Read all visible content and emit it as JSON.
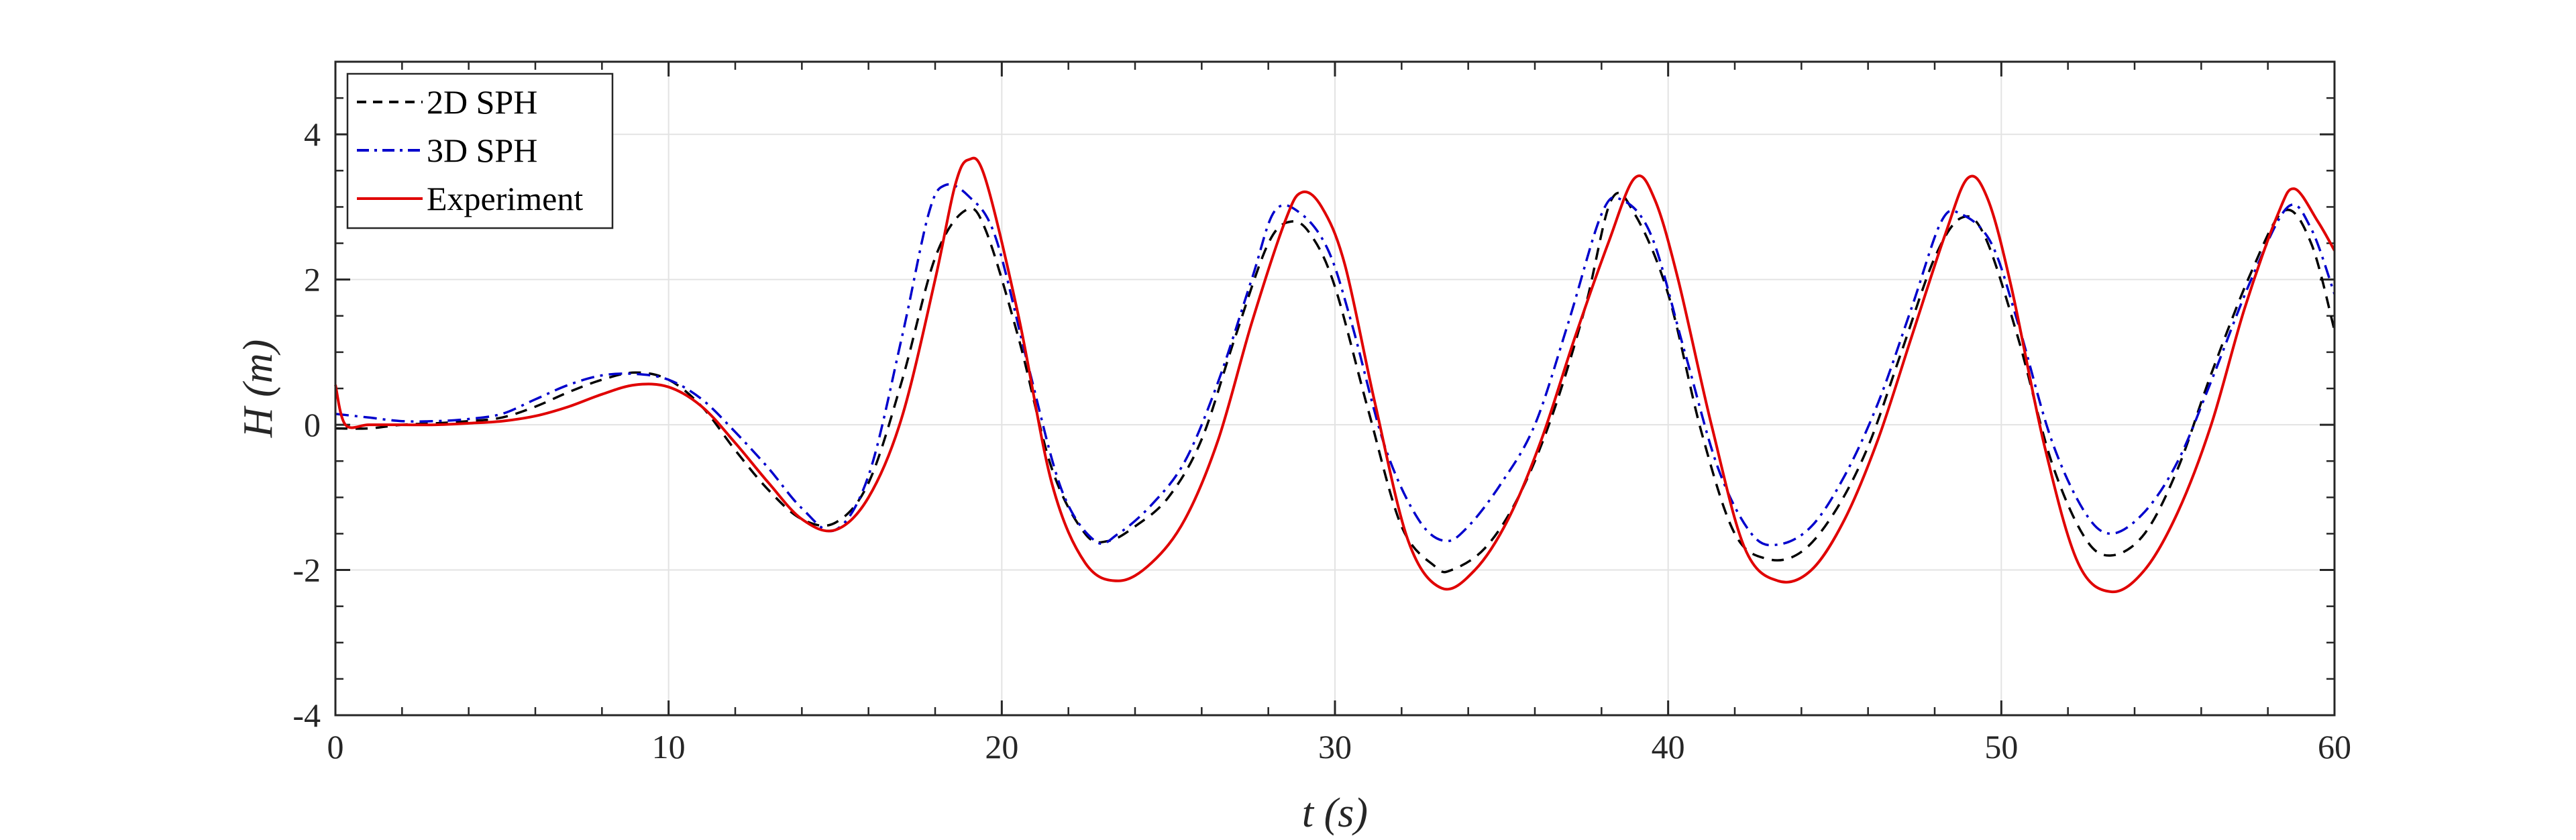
{
  "chart_data": {
    "type": "line",
    "title": "",
    "xlabel": "t (s)",
    "ylabel": "H (m)",
    "xlim": [
      0,
      60
    ],
    "ylim": [
      -4,
      5
    ],
    "xticks": [
      0,
      10,
      20,
      30,
      40,
      50,
      60
    ],
    "yticks": [
      -4,
      -2,
      0,
      2,
      4
    ],
    "xtick_labels": [
      "0",
      "10",
      "20",
      "30",
      "40",
      "50",
      "60"
    ],
    "ytick_labels": [
      "-4",
      "-2",
      "0",
      "2",
      "4"
    ],
    "grid": true,
    "legend_position": "top-left",
    "series": [
      {
        "name": "2D SPH",
        "color": "#000000",
        "style": "dashed",
        "points": [
          [
            0,
            -0.05
          ],
          [
            1,
            -0.05
          ],
          [
            2,
            0.0
          ],
          [
            3,
            0.02
          ],
          [
            4,
            0.05
          ],
          [
            5,
            0.1
          ],
          [
            6,
            0.25
          ],
          [
            7,
            0.45
          ],
          [
            8,
            0.62
          ],
          [
            9,
            0.72
          ],
          [
            10,
            0.62
          ],
          [
            11,
            0.25
          ],
          [
            12,
            -0.35
          ],
          [
            13,
            -0.9
          ],
          [
            14,
            -1.3
          ],
          [
            15,
            -1.35
          ],
          [
            16,
            -0.8
          ],
          [
            17,
            0.6
          ],
          [
            18,
            2.3
          ],
          [
            18.9,
            2.95
          ],
          [
            19.5,
            2.7
          ],
          [
            20.5,
            1.2
          ],
          [
            21.5,
            -0.6
          ],
          [
            22.5,
            -1.5
          ],
          [
            23.2,
            -1.6
          ],
          [
            24,
            -1.4
          ],
          [
            25,
            -1.0
          ],
          [
            26,
            -0.2
          ],
          [
            27,
            1.2
          ],
          [
            28,
            2.5
          ],
          [
            28.7,
            2.8
          ],
          [
            29.3,
            2.6
          ],
          [
            30,
            1.9
          ],
          [
            31,
            0.2
          ],
          [
            32,
            -1.4
          ],
          [
            33,
            -1.95
          ],
          [
            33.5,
            -2.0
          ],
          [
            34.5,
            -1.7
          ],
          [
            35.5,
            -1.0
          ],
          [
            36.5,
            0.1
          ],
          [
            37.5,
            1.6
          ],
          [
            38.3,
            3.1
          ],
          [
            39,
            2.9
          ],
          [
            40,
            1.8
          ],
          [
            41,
            -0.1
          ],
          [
            42,
            -1.5
          ],
          [
            43,
            -1.85
          ],
          [
            44,
            -1.75
          ],
          [
            45,
            -1.2
          ],
          [
            46,
            -0.3
          ],
          [
            47,
            1.0
          ],
          [
            48,
            2.3
          ],
          [
            48.8,
            2.85
          ],
          [
            49.5,
            2.6
          ],
          [
            50.5,
            1.2
          ],
          [
            51.5,
            -0.5
          ],
          [
            52.5,
            -1.55
          ],
          [
            53.3,
            -1.8
          ],
          [
            54.3,
            -1.5
          ],
          [
            55.3,
            -0.6
          ],
          [
            56.3,
            0.7
          ],
          [
            57.5,
            2.1
          ],
          [
            58.5,
            2.95
          ],
          [
            59.3,
            2.5
          ],
          [
            60,
            1.3
          ]
        ]
      },
      {
        "name": "3D SPH",
        "color": "#0000CC",
        "style": "dashdot",
        "points": [
          [
            0,
            0.15
          ],
          [
            1,
            0.1
          ],
          [
            2,
            0.05
          ],
          [
            3,
            0.05
          ],
          [
            4,
            0.08
          ],
          [
            5,
            0.15
          ],
          [
            6,
            0.35
          ],
          [
            7,
            0.55
          ],
          [
            8,
            0.68
          ],
          [
            9,
            0.7
          ],
          [
            10,
            0.62
          ],
          [
            11,
            0.35
          ],
          [
            12,
            -0.1
          ],
          [
            13,
            -0.6
          ],
          [
            14,
            -1.15
          ],
          [
            15,
            -1.45
          ],
          [
            16,
            -0.7
          ],
          [
            17,
            1.2
          ],
          [
            17.8,
            2.9
          ],
          [
            18.3,
            3.3
          ],
          [
            19,
            3.15
          ],
          [
            19.8,
            2.6
          ],
          [
            20.8,
            0.8
          ],
          [
            21.8,
            -0.9
          ],
          [
            22.8,
            -1.6
          ],
          [
            23.5,
            -1.5
          ],
          [
            24.5,
            -1.1
          ],
          [
            25.5,
            -0.5
          ],
          [
            26.5,
            0.6
          ],
          [
            27.5,
            2.0
          ],
          [
            28.2,
            2.95
          ],
          [
            29,
            2.9
          ],
          [
            29.8,
            2.4
          ],
          [
            30.5,
            1.4
          ],
          [
            31.5,
            -0.3
          ],
          [
            32.5,
            -1.3
          ],
          [
            33.3,
            -1.6
          ],
          [
            34,
            -1.4
          ],
          [
            35,
            -0.8
          ],
          [
            36,
            0.0
          ],
          [
            37,
            1.4
          ],
          [
            38,
            2.9
          ],
          [
            38.6,
            3.1
          ],
          [
            39.5,
            2.6
          ],
          [
            40.5,
            1.0
          ],
          [
            41.5,
            -0.6
          ],
          [
            42.5,
            -1.5
          ],
          [
            43.3,
            -1.65
          ],
          [
            44.3,
            -1.4
          ],
          [
            45.3,
            -0.7
          ],
          [
            46.3,
            0.3
          ],
          [
            47.3,
            1.6
          ],
          [
            48.2,
            2.8
          ],
          [
            48.8,
            2.9
          ],
          [
            49.7,
            2.5
          ],
          [
            50.5,
            1.4
          ],
          [
            51.5,
            -0.2
          ],
          [
            52.5,
            -1.2
          ],
          [
            53.3,
            -1.5
          ],
          [
            54.3,
            -1.2
          ],
          [
            55.3,
            -0.5
          ],
          [
            56.3,
            0.6
          ],
          [
            57.5,
            2.0
          ],
          [
            58.6,
            3.0
          ],
          [
            59.3,
            2.7
          ],
          [
            60,
            1.8
          ]
        ]
      },
      {
        "name": "Experiment",
        "color": "#E00000",
        "style": "solid",
        "points": [
          [
            0,
            0.55
          ],
          [
            0.3,
            0.0
          ],
          [
            1,
            0.0
          ],
          [
            2,
            0.0
          ],
          [
            3,
            0.0
          ],
          [
            4,
            0.02
          ],
          [
            5,
            0.05
          ],
          [
            6,
            0.12
          ],
          [
            7,
            0.25
          ],
          [
            8,
            0.42
          ],
          [
            9,
            0.55
          ],
          [
            10,
            0.52
          ],
          [
            11,
            0.25
          ],
          [
            12,
            -0.25
          ],
          [
            13,
            -0.8
          ],
          [
            14,
            -1.3
          ],
          [
            15,
            -1.45
          ],
          [
            16,
            -1.0
          ],
          [
            17,
            0.1
          ],
          [
            18,
            2.0
          ],
          [
            18.6,
            3.3
          ],
          [
            19,
            3.65
          ],
          [
            19.5,
            3.4
          ],
          [
            20.5,
            1.5
          ],
          [
            21.5,
            -0.8
          ],
          [
            22.5,
            -1.9
          ],
          [
            23.5,
            -2.15
          ],
          [
            24.5,
            -1.9
          ],
          [
            25.5,
            -1.3
          ],
          [
            26.5,
            -0.2
          ],
          [
            27.5,
            1.4
          ],
          [
            28.5,
            2.8
          ],
          [
            29,
            3.2
          ],
          [
            29.6,
            3.0
          ],
          [
            30.3,
            2.2
          ],
          [
            31.2,
            0.3
          ],
          [
            32.2,
            -1.6
          ],
          [
            33.2,
            -2.25
          ],
          [
            34.2,
            -2.0
          ],
          [
            35.2,
            -1.3
          ],
          [
            36.2,
            -0.2
          ],
          [
            37.2,
            1.2
          ],
          [
            38.2,
            2.5
          ],
          [
            39,
            3.4
          ],
          [
            39.6,
            3.1
          ],
          [
            40.3,
            2.0
          ],
          [
            41.3,
            0.0
          ],
          [
            42.3,
            -1.7
          ],
          [
            43.3,
            -2.15
          ],
          [
            44.3,
            -2.0
          ],
          [
            45.3,
            -1.3
          ],
          [
            46.3,
            -0.2
          ],
          [
            47.3,
            1.2
          ],
          [
            48.3,
            2.6
          ],
          [
            49,
            3.4
          ],
          [
            49.6,
            3.1
          ],
          [
            50.3,
            1.9
          ],
          [
            51.3,
            -0.3
          ],
          [
            52.3,
            -1.9
          ],
          [
            53.3,
            -2.3
          ],
          [
            54.3,
            -2.0
          ],
          [
            55.3,
            -1.2
          ],
          [
            56.3,
            0.0
          ],
          [
            57.3,
            1.6
          ],
          [
            58.3,
            2.9
          ],
          [
            58.8,
            3.25
          ],
          [
            59.5,
            2.8
          ],
          [
            60,
            2.4
          ]
        ]
      }
    ]
  }
}
